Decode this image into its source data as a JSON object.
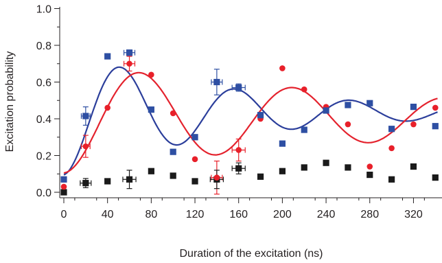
{
  "chart_data": {
    "type": "scatter",
    "title": "",
    "xlabel": "Duration of the excitation (ns)",
    "ylabel": "Excitation probability",
    "xlim": [
      -5,
      342
    ],
    "ylim": [
      -0.02,
      1.02
    ],
    "xticks": [
      0,
      40,
      80,
      120,
      160,
      200,
      240,
      280,
      320
    ],
    "xtick_labels": [
      "0",
      "40",
      "80",
      "120",
      "160",
      "200",
      "240",
      "280",
      "320"
    ],
    "yticks": [
      0.0,
      0.2,
      0.4,
      0.6,
      0.8,
      1.0
    ],
    "ytick_labels": [
      "0.0",
      "0.2",
      "0.4",
      "0.6",
      "0.8",
      "1.0"
    ],
    "grid": false,
    "legend": "none",
    "series": [
      {
        "id": "blue",
        "marker": "square",
        "color": "#2e4fa3",
        "points": [
          {
            "x": 0,
            "y": 0.07
          },
          {
            "x": 20,
            "y": 0.415,
            "yerr": 0.05,
            "xerr": 4
          },
          {
            "x": 40,
            "y": 0.74
          },
          {
            "x": 60,
            "y": 0.76,
            "yerr": 0.015,
            "xerr": 5
          },
          {
            "x": 80,
            "y": 0.45
          },
          {
            "x": 100,
            "y": 0.22
          },
          {
            "x": 120,
            "y": 0.3
          },
          {
            "x": 140,
            "y": 0.6,
            "yerr": 0.07,
            "xerr": 5
          },
          {
            "x": 160,
            "y": 0.57,
            "yerr": 0.02,
            "xerr": 6
          },
          {
            "x": 180,
            "y": 0.42
          },
          {
            "x": 200,
            "y": 0.265
          },
          {
            "x": 220,
            "y": 0.34
          },
          {
            "x": 240,
            "y": 0.445
          },
          {
            "x": 260,
            "y": 0.475
          },
          {
            "x": 280,
            "y": 0.485
          },
          {
            "x": 300,
            "y": 0.345
          },
          {
            "x": 320,
            "y": 0.465
          },
          {
            "x": 340,
            "y": 0.36
          }
        ],
        "fit": {
          "offset": 0.435,
          "amp": 0.34,
          "tau": 160,
          "period": 105,
          "start": 0.08,
          "curve_color": "#2b3e9b"
        }
      },
      {
        "id": "red",
        "marker": "circle",
        "color": "#e8202a",
        "points": [
          {
            "x": 0,
            "y": 0.03
          },
          {
            "x": 20,
            "y": 0.25,
            "yerr": 0.06,
            "xerr": 4
          },
          {
            "x": 40,
            "y": 0.46
          },
          {
            "x": 60,
            "y": 0.7,
            "yerr": 0.04,
            "xerr": 5
          },
          {
            "x": 80,
            "y": 0.64
          },
          {
            "x": 100,
            "y": 0.43
          },
          {
            "x": 120,
            "y": 0.18
          },
          {
            "x": 140,
            "y": 0.08,
            "yerr": 0.09,
            "xerr": 5
          },
          {
            "x": 160,
            "y": 0.23,
            "yerr": 0.06,
            "xerr": 6
          },
          {
            "x": 180,
            "y": 0.4
          },
          {
            "x": 200,
            "y": 0.675
          },
          {
            "x": 220,
            "y": 0.56
          },
          {
            "x": 240,
            "y": 0.465
          },
          {
            "x": 260,
            "y": 0.37
          },
          {
            "x": 280,
            "y": 0.14
          },
          {
            "x": 300,
            "y": 0.24
          },
          {
            "x": 320,
            "y": 0.37
          },
          {
            "x": 340,
            "y": 0.46
          }
        ],
        "fit": {
          "offset": 0.405,
          "amp": 0.3,
          "tau": 350,
          "period": 140,
          "start": 0.045,
          "curve_color": "#e4222d"
        }
      },
      {
        "id": "black",
        "marker": "square",
        "color": "#1a1a1a",
        "points": [
          {
            "x": 0,
            "y": 0.0
          },
          {
            "x": 20,
            "y": 0.05,
            "yerr": 0.025,
            "xerr": 5
          },
          {
            "x": 40,
            "y": 0.06
          },
          {
            "x": 60,
            "y": 0.07,
            "yerr": 0.05,
            "xerr": 6
          },
          {
            "x": 80,
            "y": 0.115
          },
          {
            "x": 100,
            "y": 0.09
          },
          {
            "x": 120,
            "y": 0.06
          },
          {
            "x": 140,
            "y": 0.07,
            "yerr": 0.05,
            "xerr": 6
          },
          {
            "x": 160,
            "y": 0.13,
            "yerr": 0.03,
            "xerr": 6
          },
          {
            "x": 180,
            "y": 0.085
          },
          {
            "x": 200,
            "y": 0.115
          },
          {
            "x": 220,
            "y": 0.135
          },
          {
            "x": 240,
            "y": 0.16
          },
          {
            "x": 260,
            "y": 0.135
          },
          {
            "x": 280,
            "y": 0.095
          },
          {
            "x": 300,
            "y": 0.07
          },
          {
            "x": 320,
            "y": 0.14
          },
          {
            "x": 340,
            "y": 0.08
          }
        ]
      }
    ]
  }
}
